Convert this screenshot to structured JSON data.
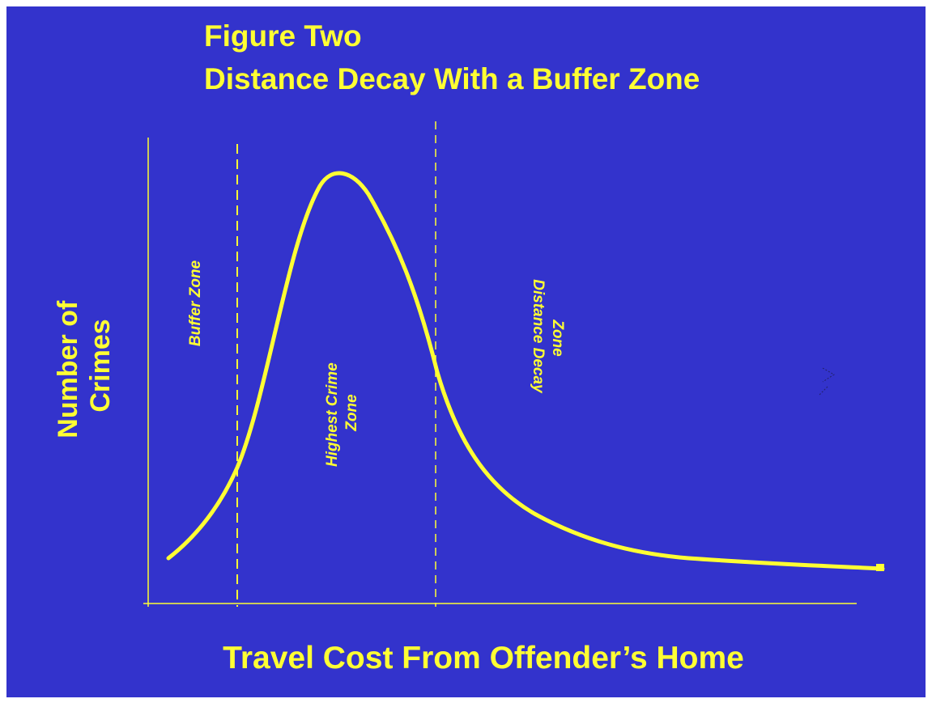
{
  "title": [
    "Figure Two",
    "Distance Decay With a Buffer Zone"
  ],
  "y_axis_label": [
    "Number of",
    "Crimes"
  ],
  "x_axis_label": "Travel Cost From Offender’s Home",
  "zones": [
    {
      "label": [
        "Buffer Zone"
      ]
    },
    {
      "label": [
        "Highest Crime",
        "Zone"
      ]
    },
    {
      "label": [
        "Distance Decay",
        "Zone"
      ]
    }
  ]
}
